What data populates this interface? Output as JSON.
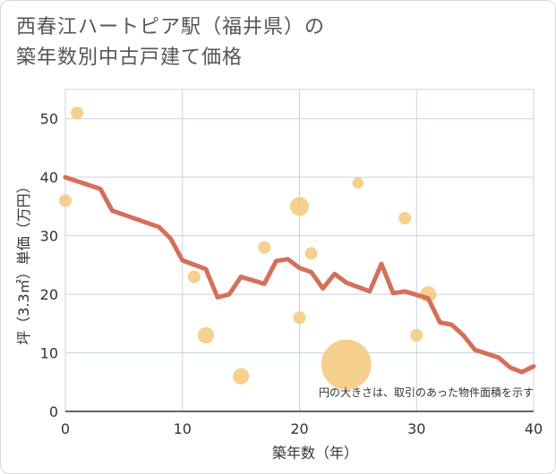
{
  "chart_data": {
    "type": "scatter",
    "title_line1": "西春江ハートピア駅（福井県）の",
    "title_line2": "築年数別中古戸建て価格",
    "xlabel": "築年数（年）",
    "ylabel": "坪（3.3㎡）単価（万円）",
    "xlim": [
      0,
      40
    ],
    "ylim": [
      0,
      55
    ],
    "x_ticks": [
      "0",
      "10",
      "20",
      "30",
      "40"
    ],
    "y_ticks": [
      "0",
      "10",
      "20",
      "30",
      "40",
      "50"
    ],
    "grid": true,
    "note": "円の大きさは、取引のあった物件面積を示す",
    "point_color": "#f5c87a",
    "line_color": "#d4705a",
    "points": [
      {
        "x": 0,
        "y": 36,
        "size": 1.0
      },
      {
        "x": 1,
        "y": 51,
        "size": 1.0
      },
      {
        "x": 11,
        "y": 23,
        "size": 1.0
      },
      {
        "x": 12,
        "y": 13,
        "size": 1.3
      },
      {
        "x": 15,
        "y": 6,
        "size": 1.3
      },
      {
        "x": 17,
        "y": 28,
        "size": 1.0
      },
      {
        "x": 20,
        "y": 35,
        "size": 1.5
      },
      {
        "x": 20,
        "y": 16,
        "size": 1.0
      },
      {
        "x": 21,
        "y": 27,
        "size": 1.0
      },
      {
        "x": 24,
        "y": 8,
        "size": 4.0
      },
      {
        "x": 25,
        "y": 39,
        "size": 0.9
      },
      {
        "x": 29,
        "y": 33,
        "size": 1.0
      },
      {
        "x": 30,
        "y": 13,
        "size": 1.0
      },
      {
        "x": 31,
        "y": 20,
        "size": 1.3
      }
    ],
    "trend": {
      "x": [
        0,
        3,
        4,
        8,
        9,
        10,
        12,
        13,
        14,
        15,
        17,
        18,
        19,
        20,
        21,
        22,
        23,
        24,
        26,
        27,
        28,
        29,
        31,
        32,
        33,
        34,
        35,
        37,
        38,
        39,
        40
      ],
      "y": [
        40,
        38,
        34.3,
        31.5,
        29.5,
        25.8,
        24.3,
        19.5,
        20,
        23,
        21.8,
        25.7,
        26,
        24.5,
        23.8,
        21,
        23.5,
        22,
        20.5,
        25.2,
        20.2,
        20.5,
        19.3,
        15.2,
        14.8,
        13,
        10.5,
        9.2,
        7.5,
        6.7,
        7.7
      ]
    }
  }
}
